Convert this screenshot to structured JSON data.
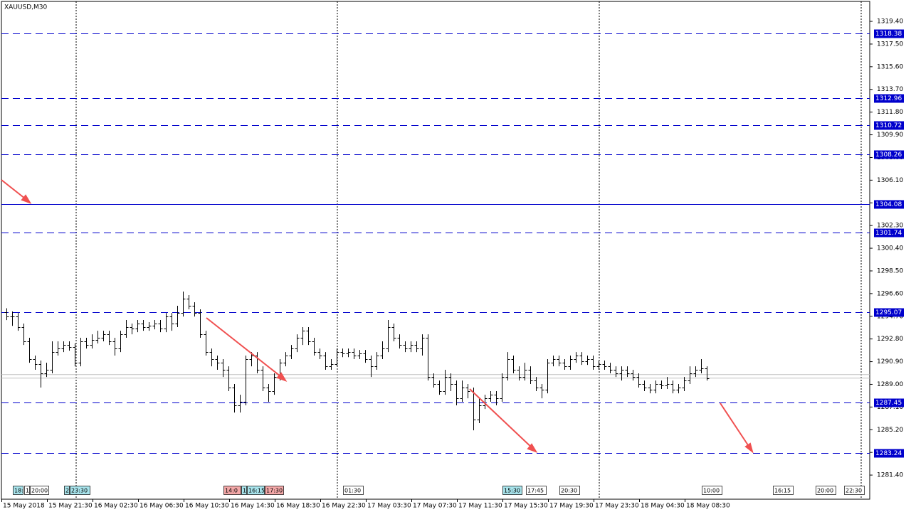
{
  "chart_data": {
    "type": "ohlc",
    "title": "XAUUSD,M30",
    "bar_color": "#000000",
    "level_color": "#0000cc",
    "grid": false,
    "ylim": [
      1279.38,
      1321.07
    ],
    "yticks": [
      {
        "value": 1319.4,
        "label": "1319.40"
      },
      {
        "value": 1317.5,
        "label": "1317.50"
      },
      {
        "value": 1315.6,
        "label": "1315.60"
      },
      {
        "value": 1313.7,
        "label": "1313.70"
      },
      {
        "value": 1311.8,
        "label": "1311.80"
      },
      {
        "value": 1309.9,
        "label": "1309.90"
      },
      {
        "value": 1308,
        "label": "1308.00"
      },
      {
        "value": 1306.1,
        "label": "1306.10"
      },
      {
        "value": 1304.2,
        "label": "1304.20"
      },
      {
        "value": 1302.3,
        "label": "1302.30"
      },
      {
        "value": 1300.4,
        "label": "1300.40"
      },
      {
        "value": 1298.5,
        "label": "1298.50"
      },
      {
        "value": 1296.6,
        "label": "1296.60"
      },
      {
        "value": 1294.7,
        "label": "1294.70"
      },
      {
        "value": 1292.8,
        "label": "1292.80"
      },
      {
        "value": 1290.9,
        "label": "1290.90"
      },
      {
        "value": 1289,
        "label": "1289.00"
      },
      {
        "value": 1287.1,
        "label": "1287.10"
      },
      {
        "value": 1285.2,
        "label": "1285.20"
      },
      {
        "value": 1283.3,
        "label": "1283.30"
      },
      {
        "value": 1281.4,
        "label": "1281.40"
      }
    ],
    "x_labels": [
      "15 May 2018",
      "15 May 21:30",
      "16 May 02:30",
      "16 May 06:30",
      "16 May 10:30",
      "16 May 14:30",
      "16 May 18:30",
      "16 May 22:30",
      "17 May 03:30",
      "17 May 07:30",
      "17 May 11:30",
      "17 May 15:30",
      "17 May 19:30",
      "17 May 23:30",
      "18 May 04:30",
      "18 May 08:30"
    ],
    "levels": [
      {
        "value": 1318.38,
        "style": "dashed"
      },
      {
        "value": 1312.96,
        "style": "dashed"
      },
      {
        "value": 1310.72,
        "style": "dashed"
      },
      {
        "value": 1308.26,
        "style": "dashed"
      },
      {
        "value": 1304.08,
        "style": "solid"
      },
      {
        "value": 1301.74,
        "style": "dashed"
      },
      {
        "value": 1295.07,
        "style": "dashed"
      },
      {
        "value": 1287.45,
        "style": "dashed"
      },
      {
        "value": 1283.24,
        "style": "dashed"
      }
    ],
    "price_lines": [
      1289.82,
      1289.52
    ],
    "event_labels": [
      {
        "label": "18:",
        "color": "#a8e4ec"
      },
      {
        "label": "1",
        "color": "#ffffff"
      },
      {
        "label": "20:00",
        "color": "#ffffff"
      },
      {
        "label": "2",
        "color": "#a8e4ec"
      },
      {
        "label": "23:30",
        "color": "#a8e4ec"
      },
      {
        "label": "14:0",
        "color": "#f4a8a8"
      },
      {
        "label": "1",
        "color": "#a8e4ec"
      },
      {
        "label": "16:15",
        "color": "#a8e4ec"
      },
      {
        "label": "17:30",
        "color": "#f4a8a8"
      },
      {
        "label": "01:30",
        "color": "#ffffff"
      },
      {
        "label": "15:30",
        "color": "#a8e4ec"
      },
      {
        "label": "17:45",
        "color": "#ffffff"
      },
      {
        "label": "20:30",
        "color": "#ffffff"
      },
      {
        "label": "10:00",
        "color": "#ffffff"
      },
      {
        "label": "16:15",
        "color": "#ffffff"
      },
      {
        "label": "20:00",
        "color": "#ffffff"
      },
      {
        "label": "22:30",
        "color": "#ffffff"
      }
    ],
    "open": [
      1295.07,
      1294.68,
      1294.68,
      1293.79,
      1292.6,
      1291.11,
      1290.69,
      1289.92,
      1290.22,
      1291.7,
      1292.0,
      1292.3,
      1292.12,
      1290.81,
      1292.6,
      1292.3,
      1292.72,
      1292.9,
      1293.19,
      1292.6,
      1292.0,
      1293.19,
      1293.79,
      1293.67,
      1294.09,
      1293.79,
      1293.91,
      1294.09,
      1293.67,
      1294.68,
      1294.09,
      1294.98,
      1296.17,
      1295.58,
      1294.98,
      1293.19,
      1291.7,
      1291.11,
      1290.81,
      1290.22,
      1288.73,
      1287.24,
      1287.54,
      1291.11,
      1291.41,
      1290.22,
      1288.73,
      1288.43,
      1289.62,
      1290.81,
      1291.41,
      1292.0,
      1292.9,
      1293.49,
      1292.6,
      1291.7,
      1291.41,
      1290.51,
      1290.69,
      1291.7,
      1291.58,
      1291.7,
      1291.41,
      1291.58,
      1291.11,
      1290.51,
      1291.41,
      1292.0,
      1293.79,
      1292.9,
      1292.3,
      1292.0,
      1292.3,
      1292.0,
      1292.9,
      1289.62,
      1289.03,
      1288.43,
      1289.62,
      1289.03,
      1287.83,
      1288.73,
      1288.43,
      1286.05,
      1287.24,
      1287.83,
      1288.13,
      1287.83,
      1289.62,
      1291.11,
      1290.22,
      1289.62,
      1290.22,
      1289.32,
      1288.73,
      1288.55,
      1290.81,
      1291.11,
      1290.81,
      1290.51,
      1291.11,
      1291.41,
      1290.93,
      1291.11,
      1290.51,
      1290.69,
      1290.51,
      1290.22,
      1289.92,
      1290.22,
      1289.92,
      1289.62,
      1289.03,
      1288.73,
      1288.55,
      1289.03,
      1288.91,
      1289.03,
      1288.55,
      1288.73,
      1289.32,
      1289.92,
      1290.22,
      1290.33
    ],
    "high": [
      1295.37,
      1295.1,
      1294.98,
      1294.09,
      1292.9,
      1291.41,
      1290.99,
      1290.81,
      1292.6,
      1292.6,
      1292.6,
      1292.6,
      1292.42,
      1292.9,
      1292.9,
      1293.19,
      1293.49,
      1293.49,
      1293.49,
      1292.9,
      1293.49,
      1294.39,
      1294.09,
      1294.39,
      1294.39,
      1294.21,
      1294.39,
      1294.39,
      1294.98,
      1294.98,
      1295.58,
      1296.77,
      1296.47,
      1295.88,
      1295.28,
      1293.49,
      1292.0,
      1291.41,
      1291.11,
      1290.51,
      1289.03,
      1288.13,
      1291.41,
      1291.7,
      1291.7,
      1290.51,
      1289.03,
      1289.92,
      1291.11,
      1291.7,
      1292.3,
      1293.19,
      1293.79,
      1293.79,
      1292.9,
      1292.0,
      1291.7,
      1291.11,
      1292.0,
      1292.0,
      1292.0,
      1292.0,
      1291.88,
      1291.88,
      1291.41,
      1291.7,
      1292.6,
      1294.39,
      1294.09,
      1293.19,
      1292.6,
      1292.6,
      1292.6,
      1293.19,
      1293.19,
      1289.92,
      1289.32,
      1290.22,
      1289.92,
      1289.32,
      1289.32,
      1289.03,
      1288.73,
      1287.83,
      1288.13,
      1288.43,
      1288.43,
      1289.92,
      1291.7,
      1291.41,
      1290.51,
      1290.81,
      1290.51,
      1289.62,
      1289.03,
      1291.11,
      1291.41,
      1291.41,
      1291.11,
      1291.41,
      1291.7,
      1291.7,
      1291.41,
      1291.41,
      1290.99,
      1290.99,
      1290.81,
      1290.51,
      1290.51,
      1290.51,
      1290.22,
      1289.92,
      1289.32,
      1289.03,
      1289.32,
      1289.32,
      1289.62,
      1289.32,
      1289.03,
      1289.62,
      1290.51,
      1290.51,
      1291.11,
      1290.51
    ],
    "low": [
      1294.38,
      1293.9,
      1293.49,
      1292.3,
      1290.81,
      1290.22,
      1288.73,
      1289.62,
      1289.92,
      1291.41,
      1291.7,
      1291.82,
      1290.51,
      1290.51,
      1292.0,
      1292.0,
      1292.42,
      1292.6,
      1292.3,
      1291.41,
      1291.7,
      1292.9,
      1293.19,
      1293.37,
      1293.49,
      1293.49,
      1293.61,
      1293.37,
      1293.37,
      1293.49,
      1293.79,
      1294.68,
      1295.28,
      1294.68,
      1292.9,
      1291.41,
      1290.51,
      1290.22,
      1289.62,
      1288.43,
      1286.64,
      1286.64,
      1287.24,
      1290.51,
      1289.92,
      1288.43,
      1287.54,
      1288.13,
      1289.32,
      1290.51,
      1291.11,
      1291.7,
      1292.3,
      1292.3,
      1291.41,
      1291.11,
      1290.22,
      1290.22,
      1290.51,
      1291.28,
      1291.28,
      1291.11,
      1291.11,
      1290.81,
      1289.62,
      1290.22,
      1291.11,
      1291.7,
      1292.6,
      1292.0,
      1291.7,
      1291.7,
      1291.7,
      1291.41,
      1289.32,
      1288.73,
      1288.13,
      1288.13,
      1288.43,
      1287.24,
      1287.54,
      1287.83,
      1285.15,
      1285.75,
      1286.94,
      1287.54,
      1287.24,
      1287.54,
      1289.32,
      1289.92,
      1289.32,
      1289.32,
      1289.03,
      1288.43,
      1287.83,
      1288.25,
      1290.51,
      1290.51,
      1290.22,
      1290.22,
      1290.81,
      1290.63,
      1290.63,
      1290.22,
      1290.22,
      1290.22,
      1289.92,
      1289.62,
      1289.32,
      1289.62,
      1289.32,
      1288.73,
      1288.43,
      1288.25,
      1288.25,
      1288.61,
      1288.61,
      1288.25,
      1288.25,
      1288.43,
      1289.03,
      1289.62,
      1289.92,
      1289.32
    ],
    "close": [
      1294.68,
      1294.68,
      1293.79,
      1292.6,
      1291.11,
      1290.69,
      1289.92,
      1290.22,
      1291.7,
      1292.0,
      1292.3,
      1292.12,
      1290.81,
      1292.6,
      1292.3,
      1292.72,
      1292.9,
      1293.19,
      1292.6,
      1292.0,
      1293.19,
      1293.79,
      1293.67,
      1294.09,
      1293.79,
      1293.91,
      1294.09,
      1293.67,
      1294.68,
      1294.09,
      1294.98,
      1296.17,
      1295.58,
      1294.98,
      1293.19,
      1291.7,
      1291.11,
      1290.81,
      1290.22,
      1288.73,
      1287.24,
      1287.54,
      1291.11,
      1291.41,
      1290.22,
      1288.73,
      1288.43,
      1289.62,
      1290.81,
      1291.41,
      1292.0,
      1292.9,
      1293.49,
      1292.6,
      1291.7,
      1291.41,
      1290.51,
      1290.69,
      1291.7,
      1291.58,
      1291.7,
      1291.41,
      1291.58,
      1291.11,
      1290.51,
      1291.41,
      1292.0,
      1293.79,
      1292.9,
      1292.3,
      1292.0,
      1292.3,
      1292.0,
      1292.9,
      1289.62,
      1289.03,
      1288.43,
      1289.62,
      1289.03,
      1287.83,
      1288.73,
      1288.43,
      1286.05,
      1287.24,
      1287.83,
      1288.13,
      1287.83,
      1289.62,
      1291.11,
      1290.22,
      1289.62,
      1290.22,
      1289.32,
      1288.73,
      1288.55,
      1290.81,
      1291.11,
      1290.81,
      1290.51,
      1291.11,
      1291.41,
      1290.93,
      1291.11,
      1290.51,
      1290.69,
      1290.51,
      1290.22,
      1289.92,
      1290.22,
      1289.92,
      1289.62,
      1289.03,
      1288.73,
      1288.55,
      1289.03,
      1288.91,
      1289.03,
      1288.55,
      1288.73,
      1289.32,
      1289.92,
      1290.22,
      1290.33,
      1289.5
    ]
  }
}
